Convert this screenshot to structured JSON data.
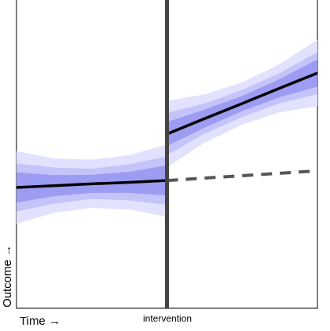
{
  "chart_data": {
    "type": "its",
    "x_label": "Time →",
    "y_label": "Outcome →",
    "intervention_label": "intervention",
    "xlim": [
      0,
      100
    ],
    "ylim": [
      0,
      100
    ],
    "intervention": {
      "x": 50,
      "color": "#444444"
    },
    "segments": [
      {
        "x": [
          0,
          12.5,
          25,
          37.5,
          50
        ],
        "values": [
          40,
          40.6,
          41.2,
          41.7,
          42.3
        ],
        "color": "#000000",
        "dashed": false,
        "bands": [
          {
            "color": "#e2e2ff",
            "lower": [
              28,
              31.6,
              33.2,
              32.7,
              30.3
            ],
            "upper": [
              52,
              49.6,
              49.2,
              50.7,
              54.3
            ]
          },
          {
            "color": "#c4c4fa",
            "lower": [
              32,
              34.6,
              36.2,
              35.7,
              34.3
            ],
            "upper": [
              48,
              46.6,
              46.2,
              47.7,
              50.3
            ]
          },
          {
            "color": "#9c9cf2",
            "lower": [
              35,
              37.1,
              38.2,
              38.2,
              37.3
            ],
            "upper": [
              45,
              44.1,
              44.2,
              45.2,
              47.3
            ]
          }
        ]
      },
      {
        "x": [
          50,
          62.5,
          75,
          87.5,
          100
        ],
        "values": [
          57.7,
          62.8,
          67.8,
          72.9,
          77.9
        ],
        "color": "#000000",
        "dashed": false,
        "bands": [
          {
            "color": "#e2e2ff",
            "lower": [
              46.7,
              54.8,
              60.8,
              64.9,
              66.9
            ],
            "upper": [
              68.7,
              70.8,
              74.8,
              80.9,
              88.9
            ]
          },
          {
            "color": "#c4c4fa",
            "lower": [
              50.7,
              57.8,
              63.3,
              67.9,
              70.9
            ],
            "upper": [
              64.7,
              67.8,
              72.3,
              77.9,
              84.9
            ]
          },
          {
            "color": "#9c9cf2",
            "lower": [
              53.7,
              59.8,
              65.3,
              69.9,
              73.4
            ],
            "upper": [
              61.7,
              65.8,
              70.3,
              75.9,
              82.4
            ]
          }
        ]
      },
      {
        "x": [
          50,
          100
        ],
        "values": [
          42.3,
          45.5
        ],
        "color": "#555555",
        "dashed": true,
        "bands": []
      }
    ]
  }
}
